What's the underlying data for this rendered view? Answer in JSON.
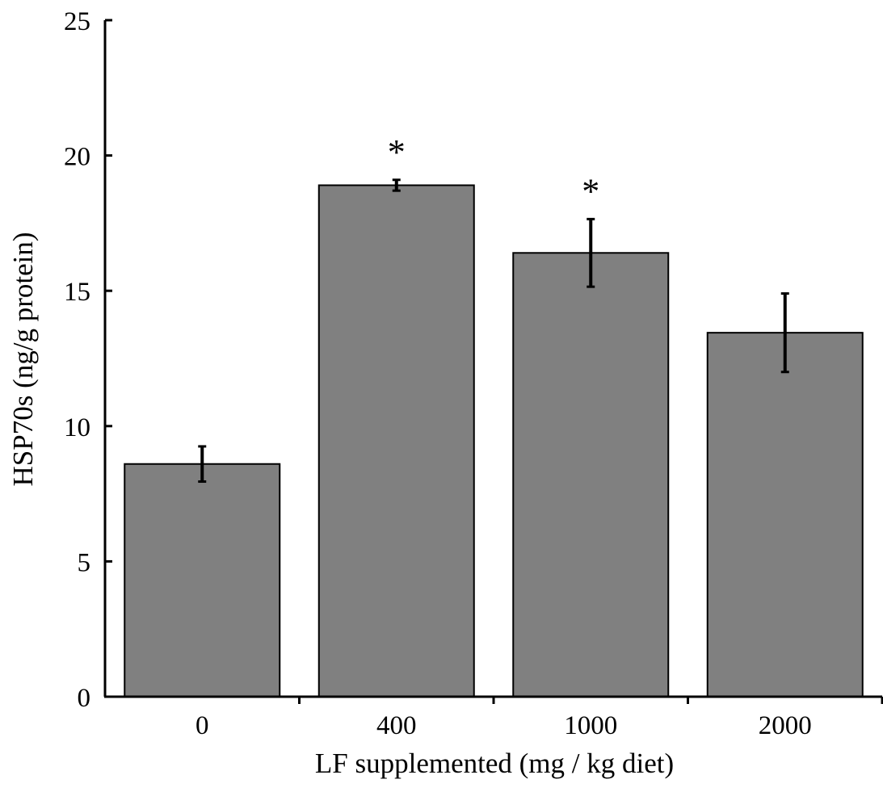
{
  "chart_data": {
    "type": "bar",
    "title": "",
    "xlabel": "LF supplemented (mg / kg diet)",
    "ylabel": "HSP70s (ng/g protein)",
    "categories": [
      "0",
      "400",
      "1000",
      "2000"
    ],
    "values": [
      8.6,
      18.9,
      16.4,
      13.45
    ],
    "errors": [
      0.65,
      0.2,
      1.25,
      1.45
    ],
    "significance": [
      "",
      "*",
      "*",
      ""
    ],
    "ylim": [
      0,
      25
    ],
    "yticks": [
      0,
      5,
      10,
      15,
      20,
      25
    ],
    "grid": false,
    "bar_color": "#808080",
    "bar_edge_color": "#000000",
    "error_color": "#000000"
  }
}
